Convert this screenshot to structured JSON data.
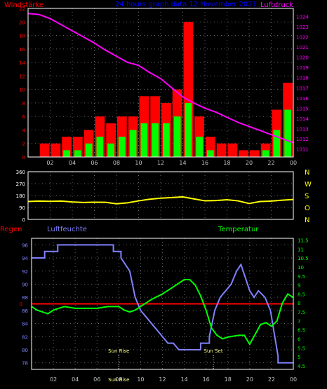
{
  "header": {
    "left_label": "Windstärke",
    "title": "24 hours graph data  12 November 2021",
    "right_label": "Luftdruck"
  },
  "colors": {
    "background": "#000000",
    "grid": "#6a6a6a",
    "wind_gust": "#ff0000",
    "wind_avg": "#00ff00",
    "pressure": "#ff00ff",
    "direction": "#ffff00",
    "humidity": "#8080ff",
    "temperature": "#00ff00",
    "rain": "#ff0000",
    "axis_left_top": "#ff0000",
    "axis_right_top": "#ff00ff",
    "axis_left_bottom": "#8080ff",
    "axis_right_bottom": "#00ff00",
    "compass": "#ffff00",
    "marker_text": "#ffff80"
  },
  "x_ticks": [
    "02",
    "04",
    "06",
    "08",
    "10",
    "12",
    "14",
    "16",
    "18",
    "20",
    "22",
    "00"
  ],
  "compass": [
    "N",
    "W",
    "S",
    "O",
    "N"
  ],
  "bottom_labels": {
    "rain": "Regen",
    "humidity": "Luftfeuchte",
    "temperature": "Temperatur"
  },
  "markers": {
    "sunrise_label": "Sun Rise",
    "sunrise_time": 8.0,
    "sunset_label": "Sun Set",
    "sunset_time": 16.67
  },
  "chart_data": [
    {
      "type": "bar",
      "title": "24 hours graph data  12 November 2021",
      "x_range_hours": [
        0,
        24
      ],
      "ylabel_left": "Windstärke",
      "ylabel_right": "Luftdruck",
      "ylim_left": [
        0,
        22
      ],
      "yticks_left": [
        0,
        2,
        4,
        6,
        8,
        10,
        12,
        14,
        16,
        18,
        20,
        22
      ],
      "ylim_right": [
        1010.2,
        1024.8
      ],
      "yticks_right": [
        1011,
        1012,
        1013,
        1014,
        1015,
        1016,
        1017,
        1018,
        1019,
        1020,
        1021,
        1022,
        1023,
        1024
      ],
      "wind_gust_hourly": [
        0,
        2,
        2,
        3,
        3,
        4,
        6,
        5,
        6,
        6,
        9,
        9,
        8,
        10,
        20,
        6,
        3,
        2,
        2,
        1,
        1,
        2,
        7,
        11
      ],
      "wind_avg_hourly": [
        0,
        0,
        0,
        1,
        1,
        2,
        3,
        2,
        3,
        4,
        5,
        5,
        5,
        6,
        8,
        3,
        1,
        0,
        0,
        0,
        0,
        1,
        4,
        7
      ],
      "pressure": {
        "x": [
          0,
          1,
          2,
          3,
          4,
          5,
          6,
          7,
          8,
          9,
          10,
          11,
          12,
          13,
          14,
          15,
          16,
          17,
          18,
          19,
          20,
          21,
          22,
          23,
          24
        ],
        "y": [
          1024.3,
          1024.2,
          1023.8,
          1023.2,
          1022.6,
          1022.0,
          1021.4,
          1020.7,
          1020.1,
          1019.5,
          1019.2,
          1018.5,
          1017.9,
          1017.0,
          1016.1,
          1015.5,
          1015.0,
          1014.6,
          1014.1,
          1013.6,
          1013.2,
          1012.8,
          1012.4,
          1012.0,
          1011.6
        ]
      },
      "grid": true
    },
    {
      "type": "line",
      "ylim": [
        0,
        360
      ],
      "yticks": [
        0,
        90,
        180,
        270,
        360
      ],
      "series": [
        {
          "x": [
            0,
            1,
            2,
            3,
            4,
            5,
            6,
            7,
            8,
            9,
            10,
            11,
            12,
            13,
            14,
            15,
            16,
            17,
            18,
            19,
            20,
            21,
            22,
            23,
            24
          ],
          "y": [
            135,
            138,
            136,
            138,
            132,
            128,
            130,
            129,
            118,
            125,
            140,
            152,
            160,
            165,
            170,
            155,
            140,
            142,
            148,
            140,
            120,
            135,
            138,
            145,
            150
          ]
        }
      ],
      "grid": true
    },
    {
      "type": "line",
      "x_range_hours": [
        0,
        24
      ],
      "ylabel_left": "Luftfeuchte",
      "ylabel_right": "Temperatur",
      "ylim_left": [
        77,
        97
      ],
      "yticks_left": [
        78,
        80,
        82,
        84,
        86,
        88,
        90,
        92,
        94,
        96
      ],
      "ylim_right": [
        4.3,
        11.6
      ],
      "yticks_right": [
        4.5,
        5,
        5.5,
        6,
        6.5,
        7,
        7.5,
        8,
        8.5,
        9,
        9.5,
        10,
        10.5,
        11,
        11.5
      ],
      "rain_zero_label": "0",
      "series": [
        {
          "name": "Luftfeuchte",
          "x": [
            0,
            1.2,
            1.2,
            2.4,
            2.4,
            7.5,
            7.5,
            8.2,
            8.2,
            9.0,
            9.5,
            10.0,
            10.5,
            11.0,
            11.5,
            12.0,
            12.5,
            13.0,
            13.5,
            14.0,
            15.5,
            15.5,
            16.3,
            16.3,
            16.8,
            17.3,
            17.8,
            18.3,
            18.8,
            19.2,
            19.6,
            20.0,
            20.4,
            20.8,
            21.4,
            21.9,
            22.3,
            22.6,
            22.6,
            24
          ],
          "y": [
            94,
            94,
            95,
            95,
            96,
            96,
            95,
            95,
            94,
            92,
            88,
            86,
            85,
            84,
            83,
            82,
            81,
            81,
            80,
            80,
            80,
            81,
            81,
            82,
            86,
            88,
            89,
            90,
            92,
            93,
            91,
            89,
            88,
            89,
            88,
            86,
            82,
            79,
            78,
            78
          ]
        },
        {
          "name": "Temperatur",
          "x": [
            0,
            0.5,
            1,
            1.5,
            2,
            3,
            4,
            5,
            6,
            7,
            8,
            8.5,
            9,
            9.5,
            10,
            11,
            12,
            13,
            14,
            14.5,
            15,
            15.5,
            16,
            16.5,
            17,
            17.5,
            18,
            19,
            19.5,
            20,
            21,
            21.5,
            22,
            22.5,
            23,
            23.5,
            24
          ],
          "y": [
            7.8,
            7.6,
            7.5,
            7.4,
            7.6,
            7.8,
            7.7,
            7.7,
            7.7,
            7.8,
            7.8,
            7.6,
            7.5,
            7.6,
            7.8,
            8.2,
            8.5,
            8.9,
            9.3,
            9.3,
            9.0,
            8.4,
            7.6,
            6.6,
            6.2,
            6.0,
            6.1,
            6.2,
            6.2,
            5.7,
            6.8,
            6.9,
            6.7,
            7.0,
            8.0,
            8.5,
            8.3
          ]
        }
      ],
      "grid": true
    }
  ]
}
